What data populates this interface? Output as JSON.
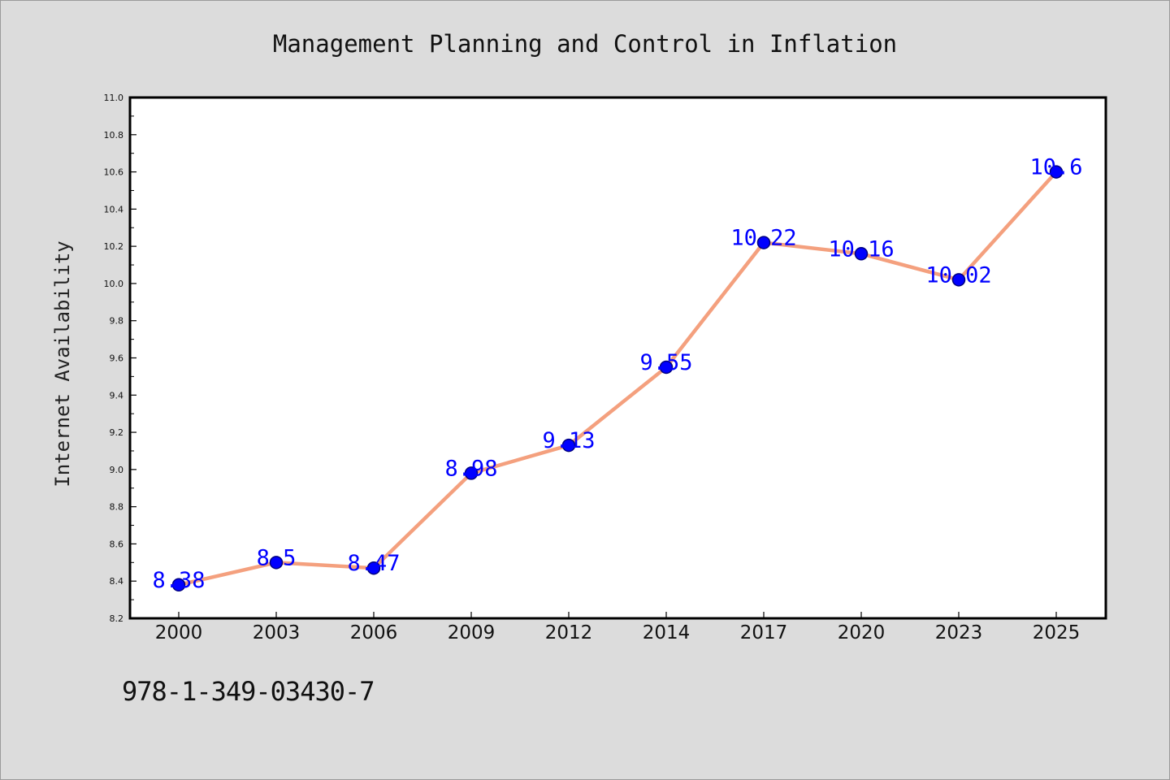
{
  "chart_data": {
    "type": "line",
    "title": "Management Planning and Control in Inflation",
    "xlabel": "",
    "ylabel": "Internet Availability",
    "categories": [
      "2000",
      "2003",
      "2006",
      "2009",
      "2012",
      "2014",
      "2017",
      "2020",
      "2023",
      "2025"
    ],
    "values": [
      8.38,
      8.5,
      8.47,
      8.98,
      9.13,
      9.55,
      10.22,
      10.16,
      10.02,
      10.6
    ],
    "data_labels": [
      "8.38",
      "8.5",
      "8.47",
      "8.98",
      "9.13",
      "9.55",
      "10.22",
      "10.16",
      "10.02",
      "10.6"
    ],
    "ylim": [
      8.2,
      11.0
    ],
    "yticks": [
      "8.2",
      "8.4",
      "8.6",
      "8.8",
      "9.0",
      "9.2",
      "9.4",
      "9.6",
      "9.8",
      "10.0",
      "10.2",
      "10.4",
      "10.6",
      "10.8",
      "11.0"
    ],
    "grid": false,
    "legend": "none",
    "colors": {
      "line": "#f4a07e",
      "marker": "#0000ff",
      "marker_edge": "#000080",
      "data_label": "#0000ff",
      "plot_bg": "#ffffff",
      "page_bg": "#dcdcdc"
    }
  },
  "footer": {
    "isbn": "978-1-349-03430-7"
  }
}
